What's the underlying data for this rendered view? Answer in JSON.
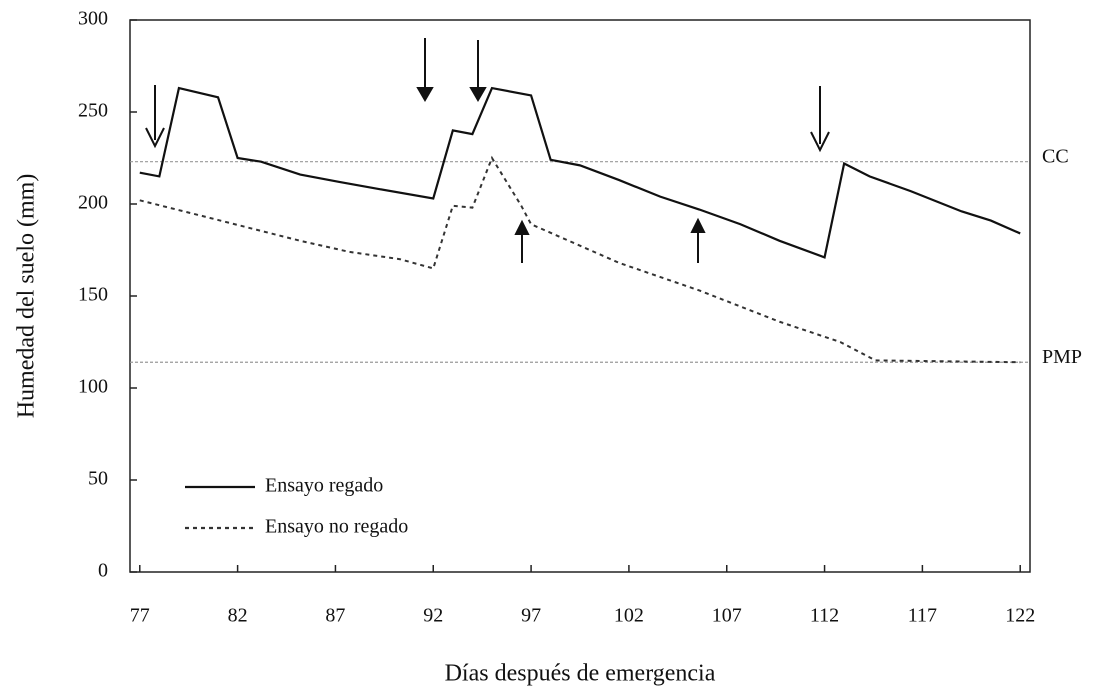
{
  "chart_data": {
    "type": "line",
    "xlabel": "Días después de emergencia",
    "ylabel": "Humedad del suelo (mm)",
    "xlim": [
      76.5,
      122.5
    ],
    "xticks": [
      77,
      82,
      87,
      92,
      97,
      102,
      107,
      112,
      117,
      122
    ],
    "ylim": [
      0,
      300
    ],
    "yticks": [
      0,
      50,
      100,
      150,
      200,
      250,
      300
    ],
    "hlines": [
      {
        "value": 223,
        "label": "CC"
      },
      {
        "value": 114,
        "label": "PMP"
      }
    ],
    "legend": "lower left",
    "series": [
      {
        "name": "Ensayo regado",
        "color": "#111111",
        "style": "solid",
        "x": [
          77,
          78,
          79,
          81,
          82,
          83.2,
          85.2,
          87.2,
          89.3,
          92,
          93,
          94,
          95,
          97,
          98,
          99.5,
          101.5,
          103.6,
          105.6,
          107.7,
          109.7,
          112,
          113,
          114.3,
          116.4,
          119,
          120.5,
          122
        ],
        "values": [
          217,
          215,
          263,
          258,
          225,
          223,
          216,
          212,
          208,
          203,
          240,
          238,
          263,
          259,
          224,
          221,
          213,
          204,
          197,
          189,
          180,
          171,
          222,
          215,
          207,
          196,
          191,
          184
        ]
      },
      {
        "name": "Ensayo no regado",
        "color": "#333333",
        "style": "dotted",
        "x": [
          77,
          80,
          82.6,
          85.2,
          87.7,
          90.3,
          92,
          93,
          94,
          95,
          96.5,
          97,
          98.5,
          101.5,
          105.6,
          109.7,
          112.8,
          114.6,
          122
        ],
        "values": [
          202,
          194,
          187,
          180,
          174,
          170,
          165,
          199,
          198,
          225,
          199,
          189,
          182,
          168,
          153,
          136,
          125,
          115,
          114
        ]
      }
    ]
  }
}
